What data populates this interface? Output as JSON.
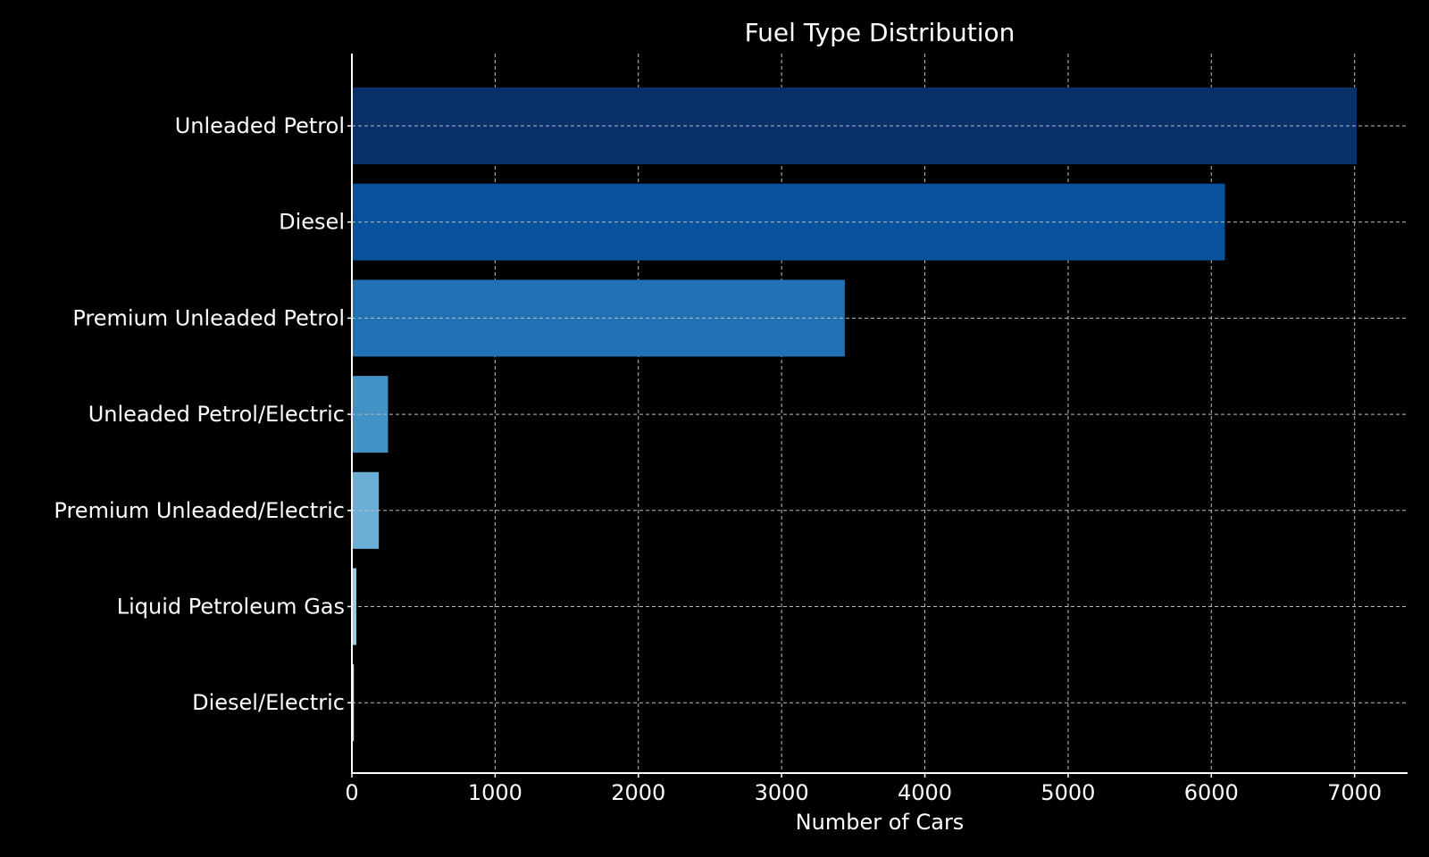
{
  "chart_data": {
    "type": "bar",
    "orientation": "horizontal",
    "title": "Fuel Type Distribution",
    "xlabel": "Number of Cars",
    "ylabel": "",
    "categories": [
      "Unleaded Petrol",
      "Diesel",
      "Premium Unleaded Petrol",
      "Unleaded Petrol/Electric",
      "Premium Unleaded/Electric",
      "Liquid Petroleum Gas",
      "Diesel/Electric"
    ],
    "values": [
      7015,
      6095,
      3441,
      252,
      188,
      31,
      14
    ],
    "colors": [
      "#08306b",
      "#08519c",
      "#2171b5",
      "#4292c6",
      "#6baed6",
      "#9ecae1",
      "#c6dbef"
    ],
    "xlim": [
      0,
      7370
    ],
    "xticks": [
      0,
      1000,
      2000,
      3000,
      4000,
      5000,
      6000,
      7000
    ],
    "grid": true,
    "legend": "none"
  }
}
